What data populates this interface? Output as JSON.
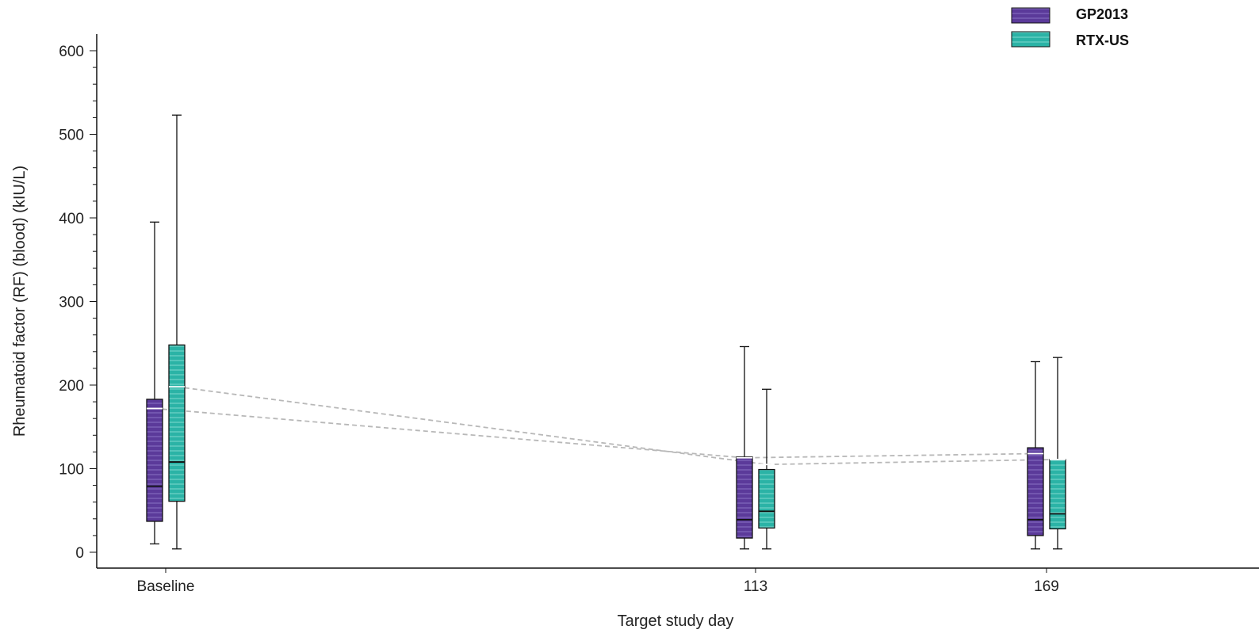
{
  "chart_data": {
    "type": "box",
    "title": "",
    "xlabel": "Target study day",
    "ylabel": "Rheumatoid factor (RF) (blood) (kIU/L)",
    "ylim": [
      0,
      600
    ],
    "yticks": [
      "0",
      "100",
      "200",
      "300",
      "400",
      "500",
      "600"
    ],
    "categories": [
      "Baseline",
      "113",
      "169"
    ],
    "legend_position": "top-right",
    "grid": false,
    "series": [
      {
        "name": "GP2013",
        "color": "#5b3a9a",
        "boxes": [
          {
            "category": "Baseline",
            "min": 10,
            "q1": 37,
            "median": 79,
            "mean": 172,
            "q3": 183,
            "max": 395
          },
          {
            "category": "113",
            "min": 4,
            "q1": 17,
            "median": 39,
            "mean": 113,
            "q3": 114,
            "max": 246
          },
          {
            "category": "169",
            "min": 4,
            "q1": 20,
            "median": 39,
            "mean": 118,
            "q3": 125,
            "max": 228
          }
        ]
      },
      {
        "name": "RTX-US",
        "color": "#2bb3a6",
        "boxes": [
          {
            "category": "Baseline",
            "min": 4,
            "q1": 61,
            "median": 108,
            "mean": 198,
            "q3": 248,
            "max": 523
          },
          {
            "category": "113",
            "min": 4,
            "q1": 29,
            "median": 49,
            "mean": 105,
            "q3": 99,
            "max": 195
          },
          {
            "category": "169",
            "min": 4,
            "q1": 28,
            "median": 46,
            "mean": 111,
            "q3": 111,
            "max": 233
          }
        ]
      }
    ]
  }
}
